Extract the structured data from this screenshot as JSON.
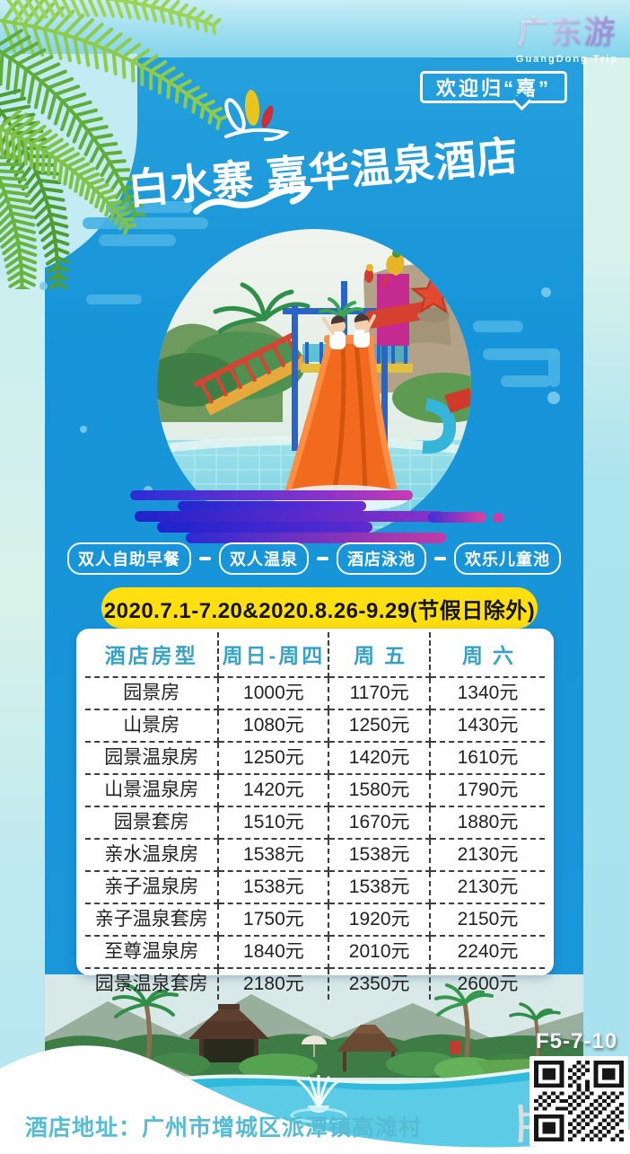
{
  "brand": {
    "logo_cn": "广东游",
    "logo_en": "GuangDong Trip"
  },
  "badge": {
    "text": "欢迎归“嘉”"
  },
  "title": {
    "text": "白水寨 嘉华温泉酒店"
  },
  "features": {
    "items": [
      "双人自助早餐",
      "双人温泉",
      "酒店泳池",
      "欢乐儿童池"
    ],
    "separator": "—"
  },
  "validity": {
    "text": "2020.7.1-7.20&2020.8.26-9.29(节假日除外)"
  },
  "price_table": {
    "headers": [
      "酒店房型",
      "周日-周四",
      "周五",
      "周六"
    ],
    "rows": [
      [
        "园景房",
        "1000元",
        "1170元",
        "1340元"
      ],
      [
        "山景房",
        "1080元",
        "1250元",
        "1430元"
      ],
      [
        "园景温泉房",
        "1250元",
        "1420元",
        "1610元"
      ],
      [
        "山景温泉房",
        "1420元",
        "1580元",
        "1790元"
      ],
      [
        "园景套房",
        "1510元",
        "1670元",
        "1880元"
      ],
      [
        "亲水温泉房",
        "1538元",
        "1538元",
        "2130元"
      ],
      [
        "亲子温泉房",
        "1538元",
        "1538元",
        "2130元"
      ],
      [
        "亲子温泉套房",
        "1750元",
        "1920元",
        "2150元"
      ],
      [
        "至尊温泉房",
        "1840元",
        "2010元",
        "2240元"
      ],
      [
        "园景温泉套房",
        "2180元",
        "2350元",
        "2600元"
      ]
    ]
  },
  "footer": {
    "code": "F5-7-10",
    "address": "酒店地址：广州市增城区派潭镇高滩村"
  },
  "colors": {
    "main_blue": "#1b96da",
    "band_cyan": "#9fdef0",
    "side_strip": "#bfe9f0",
    "banner_yellow": "#ffdf10",
    "table_header_teal": "#35a3c6",
    "streak_blue": "#2023cc",
    "streak_pink": "#e23f9f",
    "address_teal": "#55bcd4"
  }
}
